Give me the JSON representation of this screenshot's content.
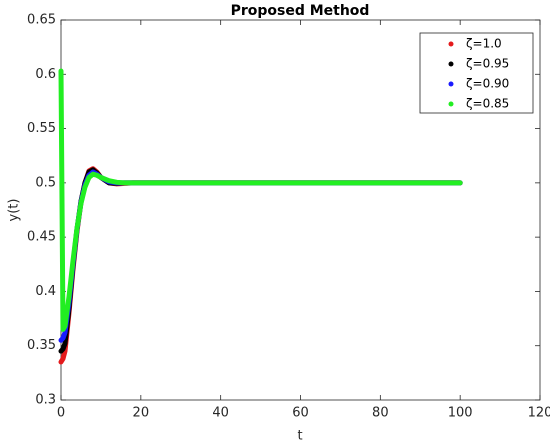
{
  "chart_data": {
    "type": "line",
    "title": "Proposed Method",
    "x_label": "t",
    "y_label": "y(t)",
    "x": [
      0,
      0.5,
      1,
      2,
      3,
      4,
      5,
      6,
      7,
      8,
      9,
      10,
      12,
      14,
      16,
      18,
      20,
      25,
      30,
      40,
      50,
      60,
      70,
      80,
      90,
      100
    ],
    "series": [
      {
        "name": "ζ=1.0",
        "color": "#e41a1c",
        "values": [
          0.335,
          0.338,
          0.345,
          0.38,
          0.42,
          0.455,
          0.482,
          0.5,
          0.511,
          0.513,
          0.51,
          0.505,
          0.5,
          0.499,
          0.4995,
          0.5,
          0.5,
          0.5,
          0.5,
          0.5,
          0.5,
          0.5,
          0.5,
          0.5,
          0.5,
          0.5
        ]
      },
      {
        "name": "ζ=0.95",
        "color": "#000000",
        "values": [
          0.345,
          0.347,
          0.352,
          0.384,
          0.423,
          0.457,
          0.483,
          0.5,
          0.51,
          0.512,
          0.509,
          0.505,
          0.5,
          0.4995,
          0.5,
          0.5,
          0.5,
          0.5,
          0.5,
          0.5,
          0.5,
          0.5,
          0.5,
          0.5,
          0.5,
          0.5
        ]
      },
      {
        "name": "ζ=0.90",
        "color": "#1a1aff",
        "values": [
          0.355,
          0.357,
          0.362,
          0.39,
          0.425,
          0.457,
          0.482,
          0.498,
          0.507,
          0.51,
          0.508,
          0.505,
          0.501,
          0.5,
          0.5,
          0.5,
          0.5,
          0.5,
          0.5,
          0.5,
          0.5,
          0.5,
          0.5,
          0.5,
          0.5,
          0.5
        ]
      },
      {
        "name": "ζ=0.85",
        "color": "#22ee22",
        "values": [
          0.603,
          0.365,
          0.368,
          0.395,
          0.428,
          0.458,
          0.481,
          0.496,
          0.505,
          0.508,
          0.507,
          0.505,
          0.502,
          0.5005,
          0.5,
          0.5,
          0.5,
          0.5,
          0.5,
          0.5,
          0.5,
          0.5,
          0.5,
          0.5,
          0.5,
          0.5
        ]
      }
    ],
    "xlim": [
      0,
      120
    ],
    "xticks": [
      0,
      20,
      40,
      60,
      80,
      100,
      120
    ],
    "ylim": [
      0.3,
      0.65
    ],
    "yticks": [
      0.3,
      0.35,
      0.4,
      0.45,
      0.5,
      0.55,
      0.6,
      0.65
    ],
    "grid": false,
    "legend": "top-right"
  }
}
